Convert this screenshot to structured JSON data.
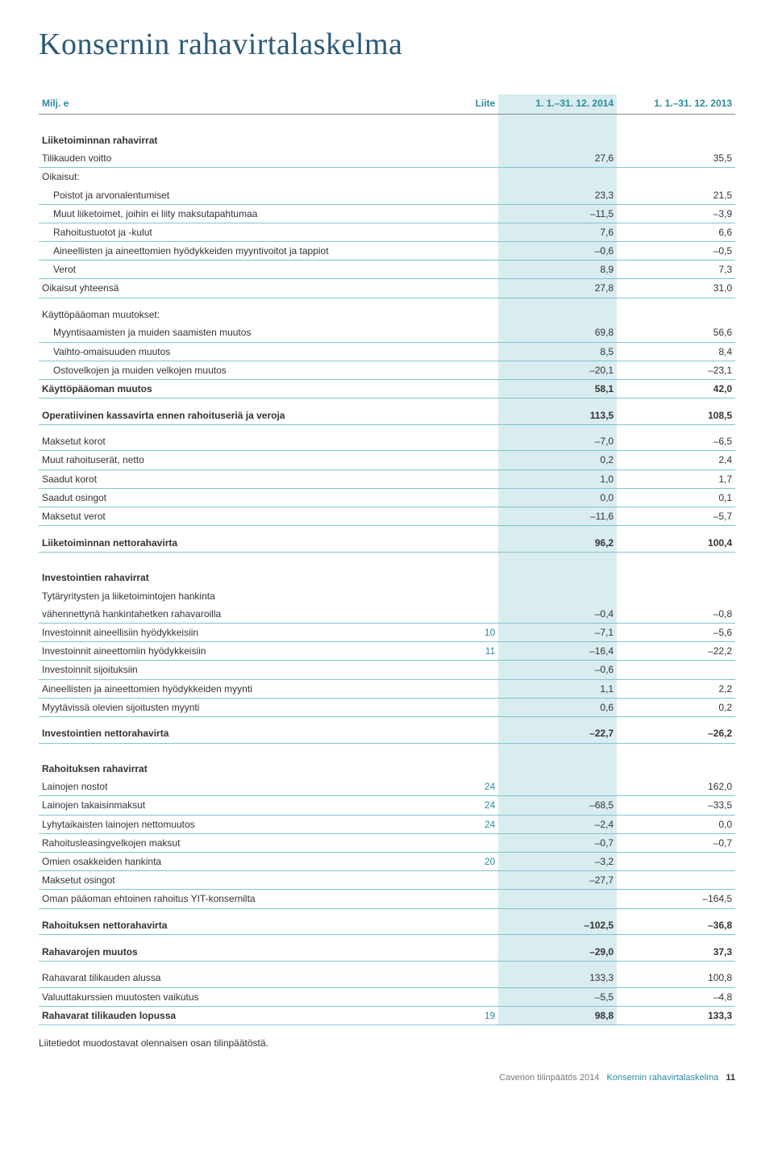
{
  "title": "Konsernin rahavirtalaskelma",
  "columns": {
    "milj": "Milj. e",
    "liite": "Liite",
    "p1": "1. 1.–31. 12. 2014",
    "p2": "1. 1.–31. 12. 2013"
  },
  "sections": [
    {
      "header": "Liiketoiminnan rahavirrat",
      "rows": [
        {
          "label": "Tilikauden voitto",
          "liite": "",
          "v1": "27,6",
          "v2": "35,5",
          "rule": true
        },
        {
          "label": "Oikaisut:",
          "liite": "",
          "v1": "",
          "v2": "",
          "rule": false
        },
        {
          "label": "  Poistot ja arvonalentumiset",
          "liite": "",
          "v1": "23,3",
          "v2": "21,5",
          "rule": true
        },
        {
          "label": "  Muut liiketoimet, joihin ei liity maksutapahtumaa",
          "liite": "",
          "v1": "–11,5",
          "v2": "–3,9",
          "rule": true
        },
        {
          "label": "  Rahoitustuotot ja -kulut",
          "liite": "",
          "v1": "7,6",
          "v2": "6,6",
          "rule": true
        },
        {
          "label": "  Aineellisten ja aineettomien hyödykkeiden myyntivoitot ja tappiot",
          "liite": "",
          "v1": "–0,6",
          "v2": "–0,5",
          "rule": true
        },
        {
          "label": "  Verot",
          "liite": "",
          "v1": "8,9",
          "v2": "7,3",
          "rule": true
        },
        {
          "label": "Oikaisut yhteensä",
          "liite": "",
          "v1": "27,8",
          "v2": "31,0",
          "rule": true
        }
      ]
    },
    {
      "header": "",
      "rows": [
        {
          "label": "Käyttöpääoman muutokset:",
          "liite": "",
          "v1": "",
          "v2": "",
          "rule": false
        },
        {
          "label": "  Myyntisaamisten ja muiden saamisten muutos",
          "liite": "",
          "v1": "69,8",
          "v2": "56,6",
          "rule": true
        },
        {
          "label": "  Vaihto-omaisuuden muutos",
          "liite": "",
          "v1": "8,5",
          "v2": "8,4",
          "rule": true
        },
        {
          "label": "  Ostovelkojen ja muiden velkojen muutos",
          "liite": "",
          "v1": "–20,1",
          "v2": "–23,1",
          "rule": true
        },
        {
          "label": "Käyttöpääoman muutos",
          "liite": "",
          "v1": "58,1",
          "v2": "42,0",
          "rule": true,
          "bold": true
        }
      ]
    },
    {
      "header": "",
      "rows": [
        {
          "label": "Operatiivinen kassavirta ennen rahoituseriä ja veroja",
          "liite": "",
          "v1": "113,5",
          "v2": "108,5",
          "rule": true,
          "bold": true
        }
      ]
    },
    {
      "header": "",
      "rows": [
        {
          "label": "Maksetut korot",
          "liite": "",
          "v1": "–7,0",
          "v2": "–6,5",
          "rule": true
        },
        {
          "label": "Muut rahoituserät, netto",
          "liite": "",
          "v1": "0,2",
          "v2": "2,4",
          "rule": true
        },
        {
          "label": "Saadut korot",
          "liite": "",
          "v1": "1,0",
          "v2": "1,7",
          "rule": true
        },
        {
          "label": "Saadut osingot",
          "liite": "",
          "v1": "0,0",
          "v2": "0,1",
          "rule": true
        },
        {
          "label": "Maksetut verot",
          "liite": "",
          "v1": "–11,6",
          "v2": "–5,7",
          "rule": true
        }
      ]
    },
    {
      "header": "",
      "rows": [
        {
          "label": "Liiketoiminnan nettorahavirta",
          "liite": "",
          "v1": "96,2",
          "v2": "100,4",
          "rule": true,
          "bold": true
        }
      ]
    },
    {
      "header": "Investointien rahavirrat",
      "rows": [
        {
          "label": "Tytäryritysten ja liiketoimintojen hankinta",
          "liite": "",
          "v1": "",
          "v2": "",
          "rule": false
        },
        {
          "label": "vähennettynä hankintahetken rahavaroilla",
          "liite": "",
          "v1": "–0,4",
          "v2": "–0,8",
          "rule": true
        },
        {
          "label": "Investoinnit aineellisiin hyödykkeisiin",
          "liite": "10",
          "v1": "–7,1",
          "v2": "–5,6",
          "rule": true
        },
        {
          "label": "Investoinnit aineettomiin hyödykkeisiin",
          "liite": "11",
          "v1": "–16,4",
          "v2": "–22,2",
          "rule": true
        },
        {
          "label": "Investoinnit sijoituksiin",
          "liite": "",
          "v1": "–0,6",
          "v2": "",
          "rule": true
        },
        {
          "label": "Aineellisten ja aineettomien hyödykkeiden myynti",
          "liite": "",
          "v1": "1,1",
          "v2": "2,2",
          "rule": true
        },
        {
          "label": "Myytävissä olevien sijoitusten myynti",
          "liite": "",
          "v1": "0,6",
          "v2": "0,2",
          "rule": true
        }
      ]
    },
    {
      "header": "",
      "rows": [
        {
          "label": "Investointien nettorahavirta",
          "liite": "",
          "v1": "–22,7",
          "v2": "–26,2",
          "rule": true,
          "bold": true
        }
      ]
    },
    {
      "header": "Rahoituksen rahavirrat",
      "rows": [
        {
          "label": "Lainojen nostot",
          "liite": "24",
          "v1": "",
          "v2": "162,0",
          "rule": true
        },
        {
          "label": "Lainojen takaisinmaksut",
          "liite": "24",
          "v1": "–68,5",
          "v2": "–33,5",
          "rule": true
        },
        {
          "label": "Lyhytaikaisten lainojen nettomuutos",
          "liite": "24",
          "v1": "–2,4",
          "v2": "0,0",
          "rule": true
        },
        {
          "label": "Rahoitusleasingvelkojen maksut",
          "liite": "",
          "v1": "–0,7",
          "v2": "–0,7",
          "rule": true
        },
        {
          "label": "Omien osakkeiden hankinta",
          "liite": "20",
          "v1": "–3,2",
          "v2": "",
          "rule": true
        },
        {
          "label": "Maksetut osingot",
          "liite": "",
          "v1": "–27,7",
          "v2": "",
          "rule": true
        },
        {
          "label": "Oman pääoman ehtoinen rahoitus YIT-konsernilta",
          "liite": "",
          "v1": "",
          "v2": "–164,5",
          "rule": true
        }
      ]
    },
    {
      "header": "",
      "rows": [
        {
          "label": "Rahoituksen nettorahavirta",
          "liite": "",
          "v1": "–102,5",
          "v2": "–36,8",
          "rule": true,
          "bold": true
        }
      ]
    },
    {
      "header": "",
      "rows": [
        {
          "label": "Rahavarojen muutos",
          "liite": "",
          "v1": "–29,0",
          "v2": "37,3",
          "rule": true,
          "bold": true
        }
      ]
    },
    {
      "header": "",
      "rows": [
        {
          "label": "Rahavarat tilikauden alussa",
          "liite": "",
          "v1": "133,3",
          "v2": "100,8",
          "rule": true
        },
        {
          "label": "Valuuttakurssien muutosten vaikutus",
          "liite": "",
          "v1": "–5,5",
          "v2": "–4,8",
          "rule": true
        },
        {
          "label": "Rahavarat tilikauden lopussa",
          "liite": "19",
          "v1": "98,8",
          "v2": "133,3",
          "rule": true,
          "bold": true
        }
      ]
    }
  ],
  "footnote": "Liitetiedot muodostavat olennaisen osan tilinpäätöstä.",
  "footer": {
    "left": "Caverion tilinpäätös 2014",
    "right": "Konsernin rahavirtalaskelma",
    "page": "11"
  },
  "colors": {
    "heading": "#2a5a7a",
    "accent": "#2a8aa0",
    "rule": "#7fc5cf",
    "highlight": "#d9ecef",
    "text": "#333333",
    "muted": "#7a7a7a"
  }
}
